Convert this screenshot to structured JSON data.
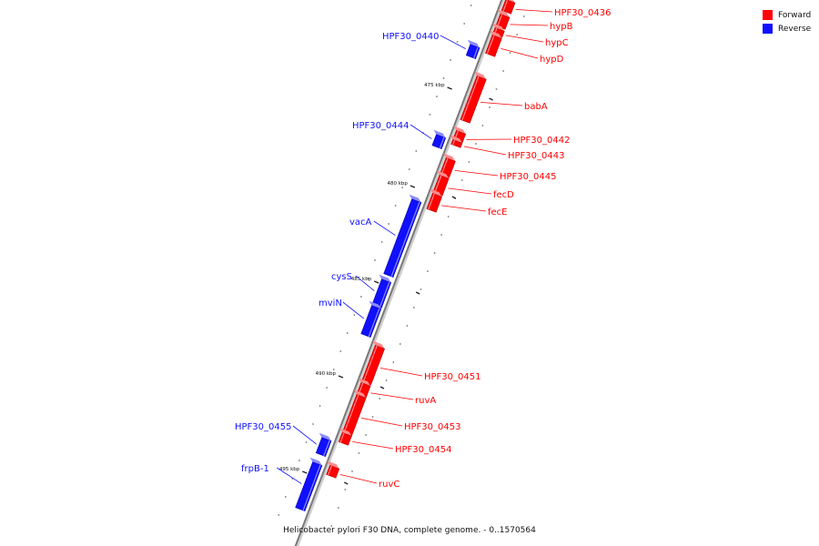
{
  "legend": {
    "forward": {
      "label": "Forward",
      "color": "#ff0000"
    },
    "reverse": {
      "label": "Reverse",
      "color": "#1010ff"
    }
  },
  "caption": "Helicobacter pylori F30 DNA, complete genome. - 0..1570564",
  "ticks": [
    "475 kbp",
    "480 kbp",
    "485 kbp",
    "490 kbp",
    "495 kbp"
  ],
  "genes": [
    {
      "name": "HPF30_0436",
      "strand": "forward"
    },
    {
      "name": "hypB",
      "strand": "forward"
    },
    {
      "name": "hypC",
      "strand": "forward"
    },
    {
      "name": "hypD",
      "strand": "forward"
    },
    {
      "name": "HPF30_0440",
      "strand": "reverse"
    },
    {
      "name": "babA",
      "strand": "forward"
    },
    {
      "name": "HPF30_0444",
      "strand": "reverse"
    },
    {
      "name": "HPF30_0442",
      "strand": "forward"
    },
    {
      "name": "HPF30_0443",
      "strand": "forward"
    },
    {
      "name": "HPF30_0445",
      "strand": "forward"
    },
    {
      "name": "fecD",
      "strand": "forward"
    },
    {
      "name": "fecE",
      "strand": "forward"
    },
    {
      "name": "vacA",
      "strand": "reverse"
    },
    {
      "name": "cysS",
      "strand": "reverse"
    },
    {
      "name": "mviN",
      "strand": "reverse"
    },
    {
      "name": "HPF30_0451",
      "strand": "forward"
    },
    {
      "name": "ruvA",
      "strand": "forward"
    },
    {
      "name": "HPF30_0453",
      "strand": "forward"
    },
    {
      "name": "HPF30_0454",
      "strand": "forward"
    },
    {
      "name": "HPF30_0455",
      "strand": "reverse"
    },
    {
      "name": "frpB-1",
      "strand": "reverse"
    },
    {
      "name": "ruvC",
      "strand": "forward"
    }
  ]
}
